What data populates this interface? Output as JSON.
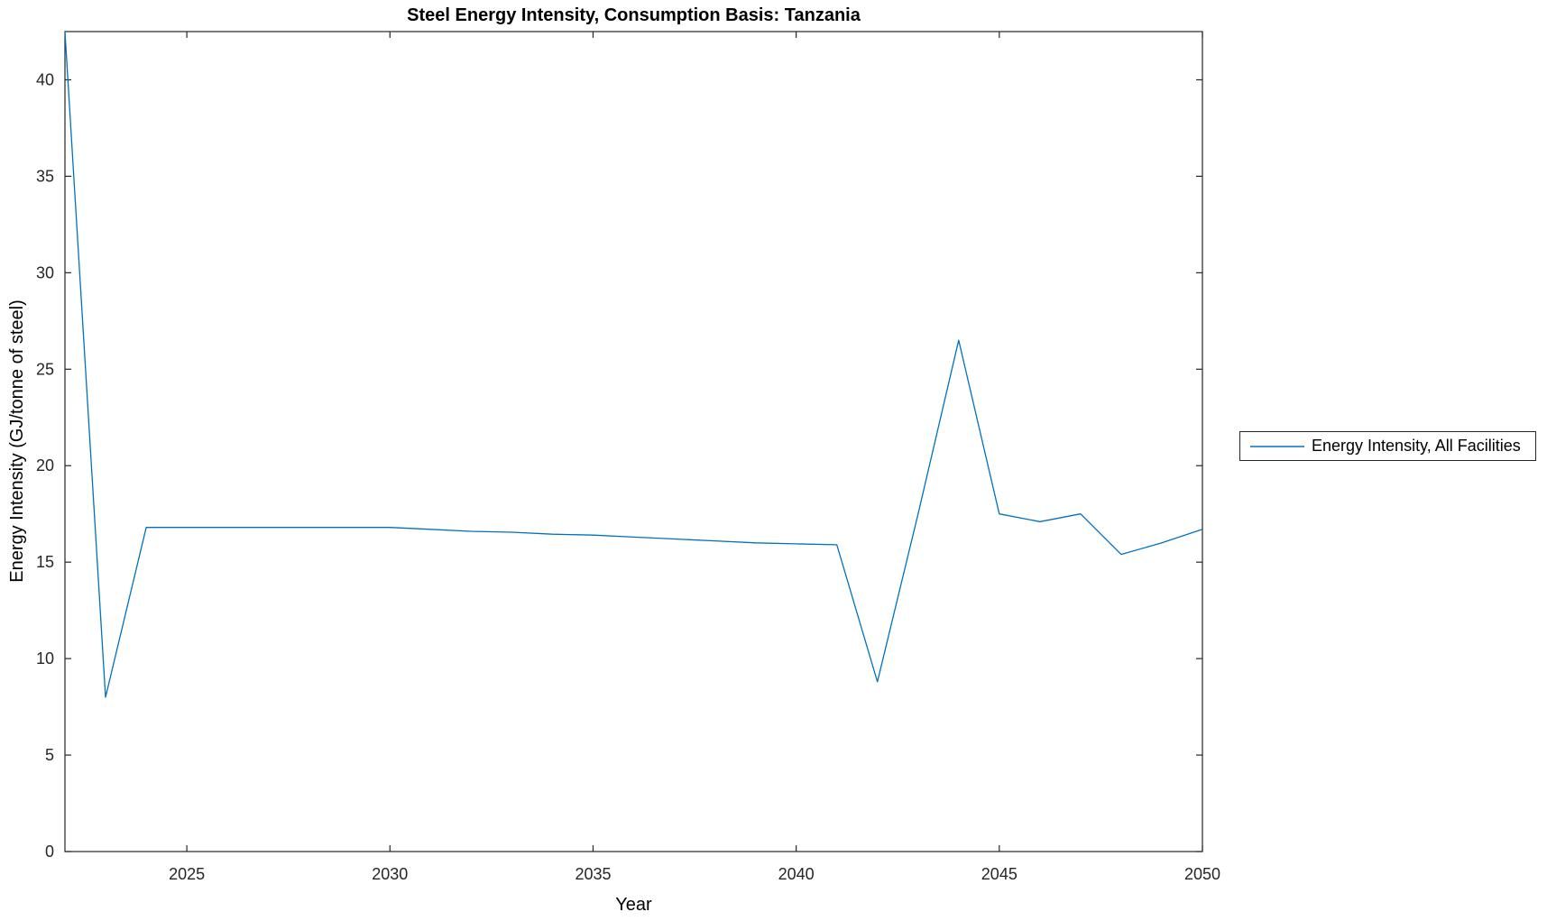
{
  "figure": {
    "background": "#ffffff"
  },
  "chart_data": {
    "type": "line",
    "title": "Steel Energy Intensity, Consumption Basis: Tanzania",
    "xlabel": "Year",
    "ylabel": "Energy Intensity (GJ/tonne of steel)",
    "xlim": [
      2022,
      2050
    ],
    "ylim": [
      0,
      42.5
    ],
    "xticks": [
      2025,
      2030,
      2035,
      2040,
      2045,
      2050
    ],
    "yticks": [
      0,
      5,
      10,
      15,
      20,
      25,
      30,
      35,
      40
    ],
    "grid": false,
    "axis_color": "#262626",
    "tick_label_color": "#262626",
    "legend": {
      "position": "outside-right",
      "entries": [
        {
          "label": "Energy Intensity, All Facilities",
          "color": "#0072BD"
        }
      ]
    },
    "series": [
      {
        "name": "Energy Intensity, All Facilities",
        "color": "#0072BD",
        "x": [
          2022,
          2023,
          2024,
          2025,
          2026,
          2027,
          2028,
          2029,
          2030,
          2031,
          2032,
          2033,
          2034,
          2035,
          2036,
          2037,
          2038,
          2039,
          2040,
          2041,
          2042,
          2043,
          2044,
          2045,
          2046,
          2047,
          2048,
          2049,
          2050
        ],
        "y": [
          42.5,
          8.0,
          16.8,
          16.8,
          16.8,
          16.8,
          16.8,
          16.8,
          16.8,
          16.7,
          16.6,
          16.55,
          16.45,
          16.4,
          16.3,
          16.2,
          16.1,
          16.0,
          15.95,
          15.9,
          8.8,
          17.5,
          26.5,
          17.5,
          17.1,
          17.5,
          15.4,
          16.0,
          16.7
        ]
      }
    ]
  }
}
